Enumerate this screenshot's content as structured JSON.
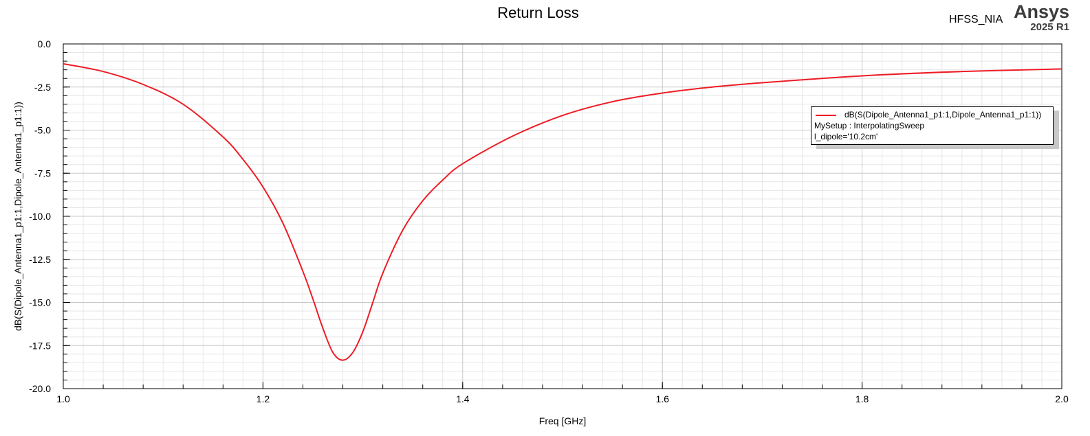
{
  "header": {
    "product": "HFSS_NIA",
    "brand": "Ansys",
    "version": "2025 R1"
  },
  "legend": {
    "trace": "dB(S(Dipole_Antenna1_p1:1,Dipole_Antenna1_p1:1))",
    "setup": "MySetup : InterpolatingSweep",
    "variable": "l_dipole='10.2cm'"
  },
  "colors": {
    "trace": "#ee1c25",
    "grid_major": "#c8c8c8",
    "grid_minor": "#e6e6e6"
  },
  "chart_data": {
    "type": "line",
    "title": "Return Loss",
    "xlabel": "Freq [GHz]",
    "ylabel": "dB(S(Dipole_Antenna1_p1:1,Dipole_Antenna1_p1:1))",
    "xlim": [
      1.0,
      2.0
    ],
    "ylim": [
      -20.0,
      0.0
    ],
    "xticks": [
      "1.0",
      "1.2",
      "1.4",
      "1.6",
      "1.8",
      "2.0"
    ],
    "yticks": [
      "0.0",
      "-2.5",
      "-5.0",
      "-7.5",
      "-10.0",
      "-12.5",
      "-15.0",
      "-17.5",
      "-20.0"
    ],
    "grid": true,
    "legend_position": "top-right",
    "series": [
      {
        "name": "dB(S(Dipole_Antenna1_p1:1,Dipole_Antenna1_p1:1))",
        "x": [
          1.0,
          1.04,
          1.08,
          1.12,
          1.16,
          1.18,
          1.2,
          1.22,
          1.24,
          1.25,
          1.26,
          1.27,
          1.28,
          1.29,
          1.3,
          1.31,
          1.32,
          1.34,
          1.36,
          1.38,
          1.4,
          1.45,
          1.5,
          1.55,
          1.6,
          1.65,
          1.7,
          1.8,
          1.9,
          2.0
        ],
        "y": [
          -1.15,
          -1.6,
          -2.35,
          -3.5,
          -5.4,
          -6.7,
          -8.3,
          -10.4,
          -13.2,
          -14.8,
          -16.5,
          -17.9,
          -18.35,
          -17.9,
          -16.7,
          -15.0,
          -13.3,
          -10.8,
          -9.1,
          -7.9,
          -6.95,
          -5.35,
          -4.15,
          -3.35,
          -2.85,
          -2.5,
          -2.25,
          -1.85,
          -1.6,
          -1.45
        ]
      }
    ]
  }
}
